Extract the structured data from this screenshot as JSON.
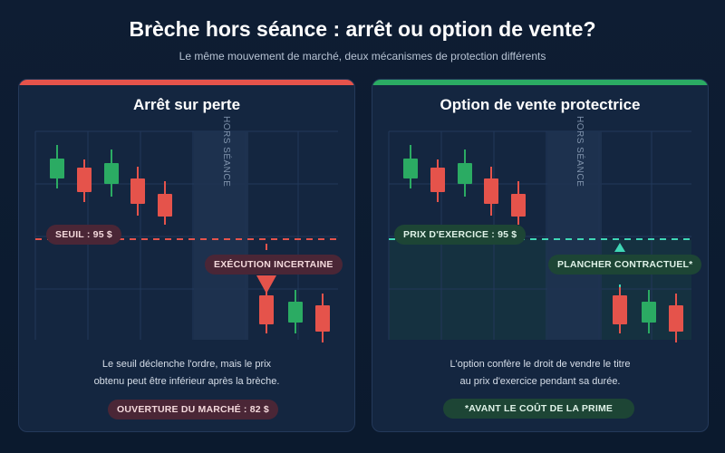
{
  "header": {
    "title": "Brèche hors séance : arrêt ou option de vente?",
    "subtitle": "Le même mouvement de marché, deux mécanismes de protection différents"
  },
  "colors": {
    "red": "#e5534b",
    "green": "#2bab63",
    "teal": "#3fd7b6",
    "bg": "#0e1d33",
    "panel": "#142640"
  },
  "left_panel": {
    "title": "Arrêt sur perte",
    "accent": "#e5534b",
    "overnight_label": "HORS SÉANCE",
    "threshold_label": "SEUIL : 95 $",
    "gap_label": "EXÉCUTION INCERTAINE",
    "description_line1": "Le seuil déclenche l'ordre, mais le prix",
    "description_line2": "obtenu peut être inférieur après la brèche.",
    "footer_badge": "OUVERTURE DU MARCHÉ : 82 $"
  },
  "right_panel": {
    "title": "Option de vente protectrice",
    "accent": "#2bab63",
    "overnight_label": "HORS SÉANCE",
    "threshold_label": "PRIX D'EXERCICE : 95 $",
    "floor_label": "PLANCHER CONTRACTUEL*",
    "description_line1": "L'option confère le droit de vendre le titre",
    "description_line2": "au prix d'exercice pendant sa durée.",
    "footer_badge": "*AVANT LE COÛT DE LA PRIME"
  }
}
